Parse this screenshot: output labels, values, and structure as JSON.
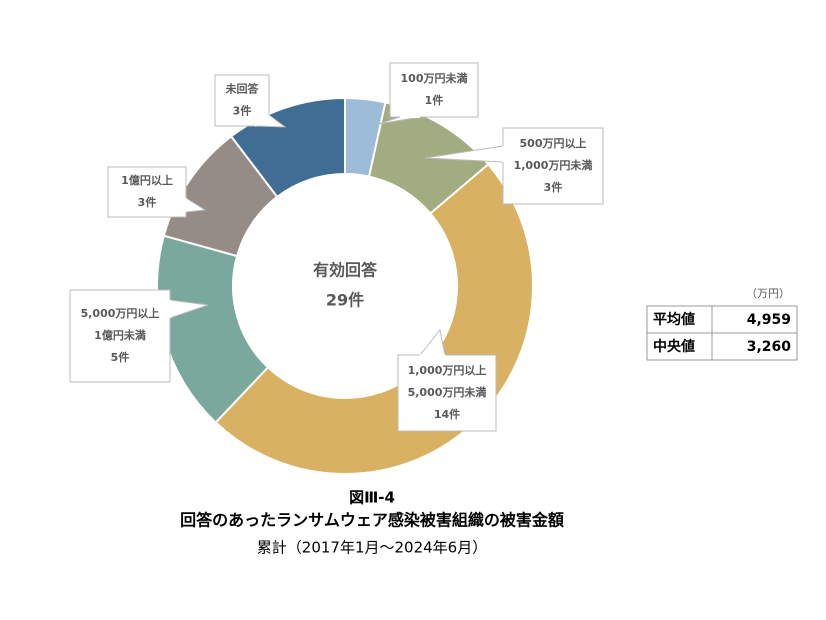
{
  "chart_data": {
    "type": "donut",
    "center_label": "有効回答",
    "total_label": "29件",
    "categories": [
      [
        "100万円未満"
      ],
      [
        "500万円以上",
        "1,000万円未満"
      ],
      [
        "1,000万円以上",
        "5,000万円未満"
      ],
      [
        "5,000万円以上",
        "1億円未満"
      ],
      [
        "1億円以上"
      ],
      [
        "未回答"
      ]
    ],
    "values": [
      1,
      3,
      14,
      5,
      3,
      3
    ],
    "value_labels": [
      "1件",
      "3件",
      "14件",
      "5件",
      "3件",
      "3件"
    ],
    "colors": [
      "#9dbcd8",
      "#a3ab80",
      "#d8b162",
      "#7ba89c",
      "#958b87",
      "#3f6d94"
    ],
    "title": [
      "図Ⅲ-4",
      "回答のあったランサムウェア感染被害組織の被害金額",
      "累計（2017年1月～2024年6月）"
    ]
  },
  "table": {
    "unit": "（万円）",
    "rows": [
      [
        "平均値",
        "4,959"
      ],
      [
        "中央値",
        "3,260"
      ]
    ]
  }
}
